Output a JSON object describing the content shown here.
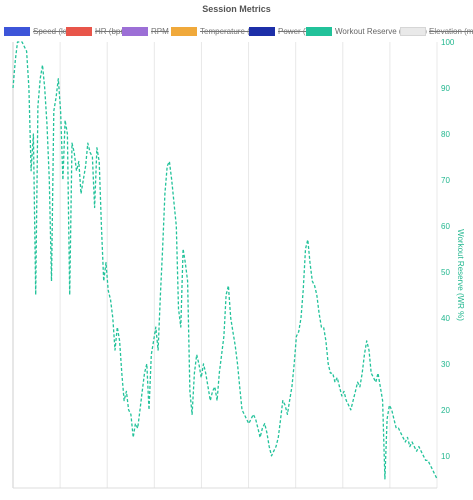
{
  "chart_data": {
    "type": "line",
    "title": "Session Metrics",
    "legend": [
      {
        "label": "Speed (km/h)",
        "color": "#3d55d9",
        "hidden": true
      },
      {
        "label": "HR (bpm)",
        "color": "#e8554a",
        "hidden": true
      },
      {
        "label": "RPM",
        "color": "#9c6fd6",
        "hidden": true
      },
      {
        "label": "Temperature (°C)",
        "color": "#f0a93b",
        "hidden": true
      },
      {
        "label": "Power (W)",
        "color": "#1d2fa8",
        "hidden": true
      },
      {
        "label": "Workout Reserve (WR %)",
        "color": "#22c29a",
        "hidden": false
      },
      {
        "label": "Elevation (m)",
        "color": "#e9e9e9",
        "hidden": true
      }
    ],
    "legend_position": "top",
    "grid": true,
    "y_right": {
      "label": "Workout Reserve (WR %)",
      "range": [
        3,
        100
      ],
      "ticks": [
        10,
        20,
        30,
        40,
        50,
        60,
        70,
        80,
        90,
        100
      ]
    },
    "series": [
      {
        "name": "Workout Reserve (WR %)",
        "color": "#22c29a",
        "values": [
          90,
          96,
          100,
          100,
          100,
          99,
          98,
          90,
          72,
          80,
          45,
          86,
          92,
          95,
          90,
          82,
          70,
          48,
          85,
          88,
          92,
          85,
          70,
          83,
          80,
          45,
          78,
          76,
          72,
          74,
          67,
          70,
          73,
          78,
          76,
          75,
          64,
          77,
          74,
          60,
          48,
          52,
          46,
          44,
          40,
          33,
          38,
          35,
          28,
          22,
          24,
          20,
          19,
          14,
          17,
          16,
          20,
          24,
          28,
          30,
          20,
          32,
          35,
          38,
          33,
          45,
          55,
          67,
          73,
          74,
          70,
          65,
          60,
          42,
          38,
          55,
          52,
          48,
          24,
          19,
          28,
          32,
          30,
          27,
          30,
          28,
          25,
          22,
          24,
          25,
          22,
          28,
          32,
          36,
          45,
          47,
          40,
          37,
          34,
          30,
          25,
          20,
          19,
          18,
          17,
          18,
          19,
          18,
          16,
          14,
          16,
          17,
          15,
          12,
          10,
          11,
          12,
          14,
          18,
          22,
          21,
          19,
          22,
          25,
          30,
          36,
          37,
          40,
          46,
          55,
          57,
          52,
          48,
          47,
          45,
          41,
          38,
          38,
          35,
          30,
          28,
          28,
          26,
          27,
          25,
          23,
          24,
          22,
          21,
          20,
          22,
          24,
          26,
          25,
          28,
          32,
          35,
          33,
          28,
          27,
          26,
          28,
          25,
          22,
          5,
          18,
          21,
          20,
          18,
          16,
          16,
          15,
          14,
          13,
          14,
          12,
          13,
          12,
          11,
          12,
          11,
          10,
          9,
          9,
          8,
          7,
          6,
          5
        ]
      }
    ]
  }
}
